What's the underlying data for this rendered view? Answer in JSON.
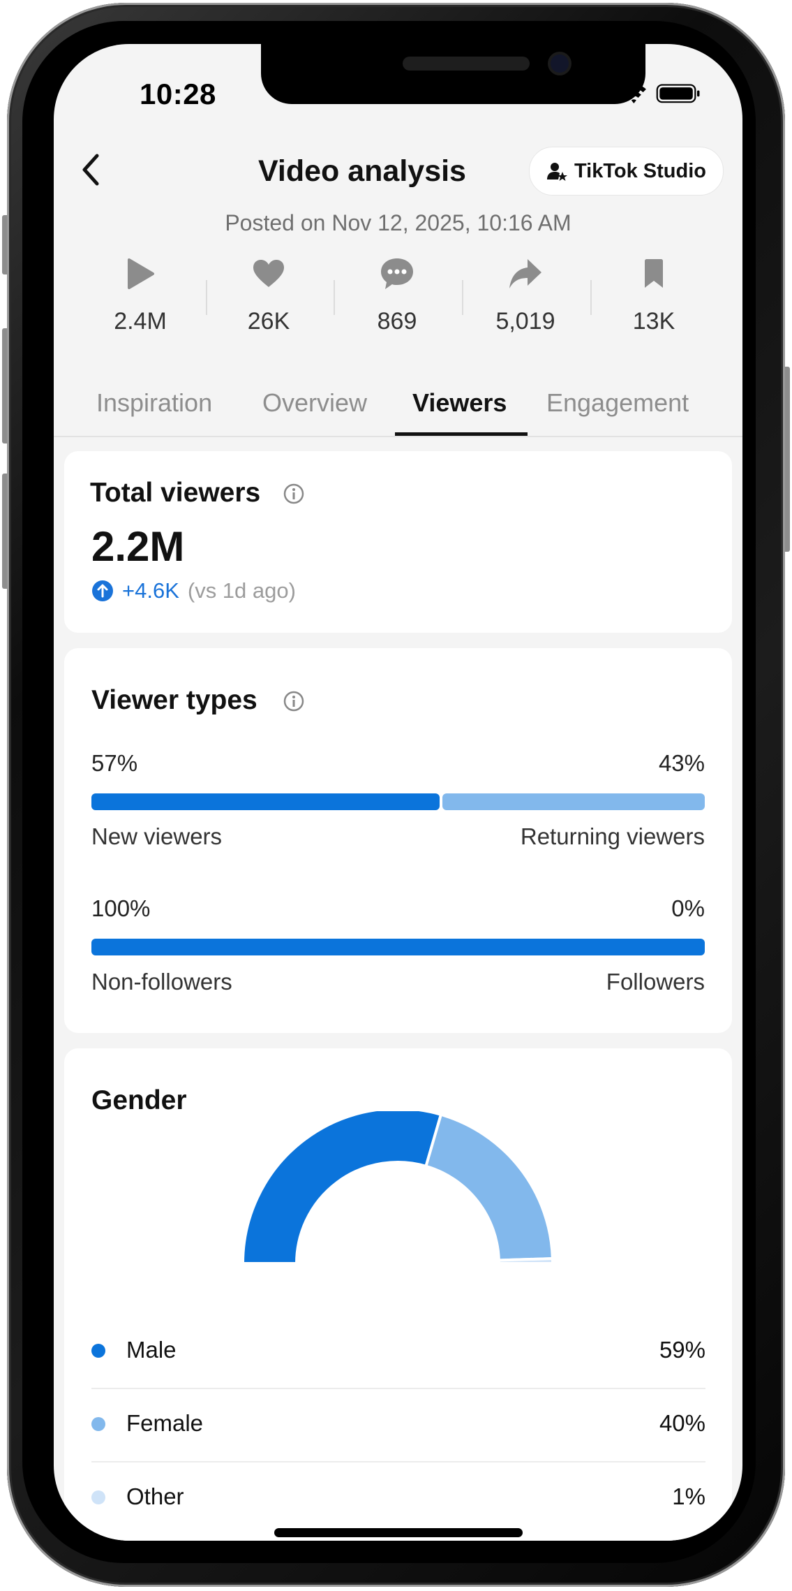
{
  "status_bar": {
    "time": "10:28"
  },
  "header": {
    "title": "Video analysis",
    "studio_button": "TikTok Studio",
    "posted": "Posted on Nov 12, 2025, 10:16 AM"
  },
  "stats": [
    {
      "icon": "play-icon",
      "value": "2.4M"
    },
    {
      "icon": "heart-icon",
      "value": "26K"
    },
    {
      "icon": "comment-icon",
      "value": "869"
    },
    {
      "icon": "share-icon",
      "value": "5,019"
    },
    {
      "icon": "bookmark-icon",
      "value": "13K"
    }
  ],
  "tabs": [
    {
      "label": "Inspiration",
      "active": false
    },
    {
      "label": "Overview",
      "active": false
    },
    {
      "label": "Viewers",
      "active": true
    },
    {
      "label": "Engagement",
      "active": false
    }
  ],
  "total_viewers": {
    "title": "Total viewers",
    "value": "2.2M",
    "delta": "+4.6K",
    "comparison": "(vs 1d ago)"
  },
  "viewer_types": {
    "title": "Viewer types",
    "rows": [
      {
        "left_pct": "57%",
        "right_pct": "43%",
        "left_label": "New viewers",
        "right_label": "Returning viewers",
        "left_fraction": 0.57
      },
      {
        "left_pct": "100%",
        "right_pct": "0%",
        "left_label": "Non-followers",
        "right_label": "Followers",
        "left_fraction": 1.0
      }
    ]
  },
  "gender": {
    "title": "Gender",
    "items": [
      {
        "name": "Male",
        "value": "59%"
      },
      {
        "name": "Female",
        "value": "40%"
      },
      {
        "name": "Other",
        "value": "1%"
      }
    ]
  },
  "chart_data": {
    "type": "pie",
    "categories": [
      "Male",
      "Female",
      "Other"
    ],
    "values": [
      59,
      40,
      1
    ],
    "colors": [
      "#0b74db",
      "#82b8ec",
      "#cfe3f8"
    ],
    "title": "Gender"
  },
  "colors": {
    "accent_blue": "#0b74db",
    "light_blue": "#82b8ec",
    "pale_blue": "#cfe3f8",
    "positive": "#1a73d9"
  }
}
